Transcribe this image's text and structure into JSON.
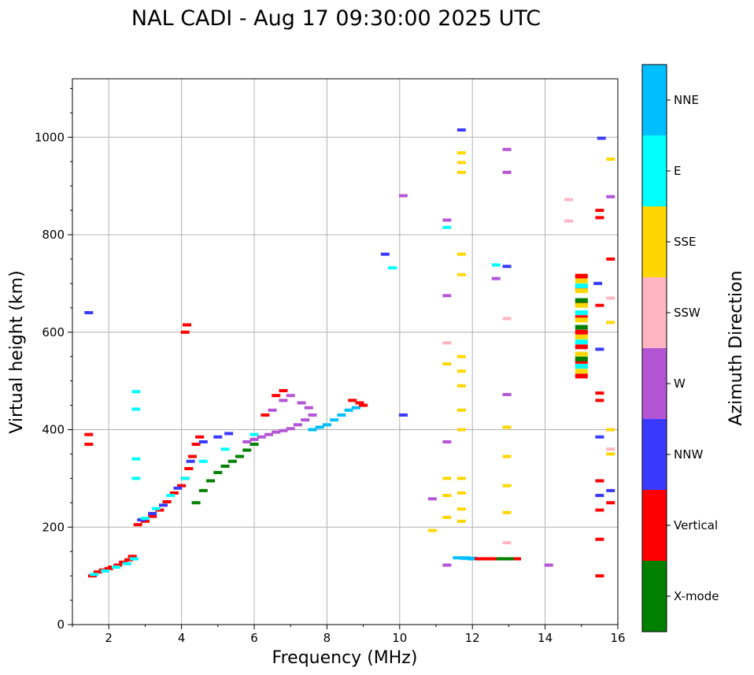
{
  "chart_data": {
    "type": "scatter",
    "title": "NAL CADI - Aug 17 09:30:00 2025 UTC",
    "xlabel": "Frequency (MHz)",
    "ylabel": "Virtual height (km)",
    "xlim": [
      1,
      16
    ],
    "ylim": [
      0,
      1120
    ],
    "xticks": [
      2,
      4,
      6,
      8,
      10,
      12,
      14,
      16
    ],
    "yticks": [
      0,
      200,
      400,
      600,
      800,
      1000
    ],
    "grid": true,
    "legend": {
      "title": "Azimuth Direction",
      "placement": "right colorbar",
      "entries": [
        {
          "name": "X-mode",
          "color": "#008000"
        },
        {
          "name": "Vertical",
          "color": "#ff0000"
        },
        {
          "name": "NNW",
          "color": "#3a3aff"
        },
        {
          "name": "W",
          "color": "#b455d5"
        },
        {
          "name": "SSW",
          "color": "#ffb6c1"
        },
        {
          "name": "SSE",
          "color": "#ffd700"
        },
        {
          "name": "E",
          "color": "#00ffff"
        },
        {
          "name": "NNE",
          "color": "#00bfff"
        }
      ]
    },
    "echo_traces": [
      {
        "name": "low E-region trace",
        "category": "Vertical",
        "points": [
          [
            1.55,
            100
          ],
          [
            1.7,
            108
          ],
          [
            1.85,
            112
          ],
          [
            2.0,
            115
          ],
          [
            2.1,
            118
          ],
          [
            2.25,
            122
          ],
          [
            2.4,
            128
          ],
          [
            2.55,
            133
          ],
          [
            2.65,
            140
          ]
        ]
      },
      {
        "name": "low E-region trace",
        "category": "E",
        "points": [
          [
            1.6,
            103
          ],
          [
            1.9,
            110
          ],
          [
            2.2,
            118
          ],
          [
            2.5,
            125
          ],
          [
            2.7,
            135
          ]
        ]
      },
      {
        "name": "F-region ordinary trace",
        "category": "Vertical",
        "points": [
          [
            2.8,
            205
          ],
          [
            3.0,
            212
          ],
          [
            3.2,
            222
          ],
          [
            3.4,
            235
          ],
          [
            3.6,
            252
          ],
          [
            3.8,
            270
          ],
          [
            4.0,
            285
          ],
          [
            4.1,
            300
          ],
          [
            4.2,
            320
          ],
          [
            4.3,
            345
          ],
          [
            4.4,
            370
          ],
          [
            4.5,
            385
          ]
        ]
      },
      {
        "name": "F-region ordinary trace",
        "category": "NNW",
        "points": [
          [
            2.9,
            215
          ],
          [
            3.2,
            228
          ],
          [
            3.5,
            245
          ],
          [
            3.9,
            280
          ],
          [
            4.25,
            335
          ],
          [
            4.6,
            375
          ],
          [
            5.0,
            385
          ],
          [
            5.3,
            392
          ]
        ]
      },
      {
        "name": "F-region ordinary trace",
        "category": "E",
        "points": [
          [
            3.0,
            218
          ],
          [
            3.3,
            238
          ],
          [
            3.7,
            265
          ],
          [
            4.1,
            300
          ],
          [
            4.6,
            335
          ],
          [
            5.2,
            360
          ],
          [
            6.0,
            390
          ]
        ]
      },
      {
        "name": "X-mode trace",
        "category": "X-mode",
        "points": [
          [
            4.4,
            250
          ],
          [
            4.6,
            275
          ],
          [
            4.8,
            295
          ],
          [
            5.0,
            312
          ],
          [
            5.2,
            325
          ],
          [
            5.4,
            335
          ],
          [
            5.6,
            345
          ],
          [
            5.8,
            358
          ],
          [
            6.0,
            370
          ]
        ]
      },
      {
        "name": "F-region spread",
        "category": "W",
        "points": [
          [
            5.8,
            375
          ],
          [
            6.0,
            380
          ],
          [
            6.2,
            385
          ],
          [
            6.4,
            390
          ],
          [
            6.6,
            395
          ],
          [
            6.8,
            398
          ],
          [
            7.0,
            402
          ],
          [
            7.2,
            410
          ],
          [
            7.4,
            420
          ],
          [
            7.6,
            430
          ],
          [
            6.5,
            440
          ],
          [
            6.8,
            460
          ],
          [
            7.0,
            470
          ],
          [
            7.3,
            455
          ],
          [
            7.5,
            445
          ]
        ]
      },
      {
        "name": "F-region spread",
        "category": "NNE",
        "points": [
          [
            7.6,
            400
          ],
          [
            7.8,
            405
          ],
          [
            8.0,
            410
          ],
          [
            8.2,
            420
          ],
          [
            8.4,
            430
          ],
          [
            8.6,
            440
          ],
          [
            8.8,
            445
          ],
          [
            9.0,
            450
          ]
        ]
      },
      {
        "name": "F-region spread",
        "category": "Vertical",
        "points": [
          [
            6.3,
            430
          ],
          [
            6.6,
            470
          ],
          [
            6.8,
            480
          ],
          [
            8.7,
            460
          ],
          [
            8.9,
            455
          ],
          [
            9.0,
            450
          ]
        ]
      },
      {
        "name": "high-frequency E-layer echo",
        "category": "NNE",
        "points": [
          [
            11.7,
            137
          ],
          [
            11.9,
            136
          ],
          [
            12.1,
            135
          ]
        ]
      },
      {
        "name": "high-frequency E-layer echo",
        "category": "Vertical",
        "points": [
          [
            12.3,
            135
          ],
          [
            12.5,
            135
          ],
          [
            12.8,
            135
          ],
          [
            13.1,
            135
          ]
        ]
      },
      {
        "name": "high-frequency E-layer echo",
        "category": "X-mode",
        "points": [
          [
            12.9,
            135
          ]
        ]
      },
      {
        "name": "15 MHz column",
        "category": "Vertical",
        "points": [
          [
            15.0,
            510
          ],
          [
            15.0,
            540
          ],
          [
            15.0,
            570
          ],
          [
            15.0,
            600
          ],
          [
            15.0,
            630
          ],
          [
            15.0,
            660
          ],
          [
            15.0,
            690
          ],
          [
            15.0,
            715
          ]
        ]
      },
      {
        "name": "15 MHz column",
        "category": "SSE",
        "points": [
          [
            15.0,
            520
          ],
          [
            15.0,
            555
          ],
          [
            15.0,
            590
          ],
          [
            15.0,
            625
          ],
          [
            15.0,
            655
          ],
          [
            15.0,
            685
          ],
          [
            15.0,
            705
          ]
        ]
      },
      {
        "name": "15 MHz column",
        "category": "X-mode",
        "points": [
          [
            15.0,
            545
          ],
          [
            15.0,
            610
          ],
          [
            15.0,
            665
          ]
        ]
      },
      {
        "name": "15 MHz column",
        "category": "E",
        "points": [
          [
            15.0,
            530
          ],
          [
            15.0,
            580
          ],
          [
            15.0,
            640
          ],
          [
            15.0,
            695
          ]
        ]
      },
      {
        "name": "scattered echoes",
        "category": "Vertical",
        "points": [
          [
            1.45,
            390
          ],
          [
            1.45,
            370
          ],
          [
            4.1,
            600
          ],
          [
            4.15,
            615
          ],
          [
            15.5,
            850
          ],
          [
            15.5,
            835
          ],
          [
            15.5,
            655
          ],
          [
            15.5,
            475
          ],
          [
            15.5,
            460
          ],
          [
            15.5,
            295
          ],
          [
            15.5,
            235
          ],
          [
            15.5,
            175
          ],
          [
            15.5,
            100
          ],
          [
            15.8,
            750
          ],
          [
            15.8,
            250
          ]
        ]
      },
      {
        "name": "scattered echoes",
        "category": "NNW",
        "points": [
          [
            1.45,
            640
          ],
          [
            9.6,
            760
          ],
          [
            11.7,
            1015
          ],
          [
            12.95,
            735
          ],
          [
            15.45,
            700
          ],
          [
            15.5,
            565
          ],
          [
            15.5,
            385
          ],
          [
            15.5,
            265
          ],
          [
            15.55,
            998
          ],
          [
            15.8,
            275
          ],
          [
            10.1,
            430
          ]
        ]
      },
      {
        "name": "scattered echoes",
        "category": "W",
        "points": [
          [
            10.1,
            880
          ],
          [
            11.3,
            830
          ],
          [
            11.3,
            675
          ],
          [
            11.3,
            375
          ],
          [
            12.65,
            710
          ],
          [
            12.95,
            928
          ],
          [
            12.95,
            975
          ],
          [
            12.95,
            472
          ],
          [
            14.1,
            122
          ],
          [
            15.8,
            878
          ],
          [
            10.9,
            258
          ],
          [
            11.3,
            122
          ]
        ]
      },
      {
        "name": "scattered echoes",
        "category": "SSE",
        "points": [
          [
            11.7,
            968
          ],
          [
            11.7,
            948
          ],
          [
            11.7,
            928
          ],
          [
            11.7,
            760
          ],
          [
            11.7,
            718
          ],
          [
            11.7,
            550
          ],
          [
            11.7,
            520
          ],
          [
            11.7,
            490
          ],
          [
            11.7,
            440
          ],
          [
            11.7,
            400
          ],
          [
            11.7,
            300
          ],
          [
            11.7,
            270
          ],
          [
            11.7,
            237
          ],
          [
            11.7,
            212
          ],
          [
            12.95,
            405
          ],
          [
            12.95,
            345
          ],
          [
            12.95,
            285
          ],
          [
            12.95,
            230
          ],
          [
            15.8,
            955
          ],
          [
            15.8,
            620
          ],
          [
            15.8,
            400
          ],
          [
            15.8,
            350
          ],
          [
            11.3,
            535
          ],
          [
            11.3,
            300
          ],
          [
            11.3,
            265
          ],
          [
            10.9,
            193
          ],
          [
            11.3,
            220
          ]
        ]
      },
      {
        "name": "scattered echoes",
        "category": "SSW",
        "points": [
          [
            14.65,
            872
          ],
          [
            14.65,
            828
          ],
          [
            12.95,
            628
          ],
          [
            12.95,
            168
          ],
          [
            15.8,
            670
          ],
          [
            15.8,
            360
          ],
          [
            11.3,
            578
          ]
        ]
      },
      {
        "name": "scattered echoes",
        "category": "E",
        "points": [
          [
            12.65,
            738
          ],
          [
            11.3,
            815
          ],
          [
            9.8,
            732
          ],
          [
            2.75,
            478
          ],
          [
            2.75,
            442
          ],
          [
            2.75,
            340
          ],
          [
            2.75,
            300
          ]
        ]
      }
    ]
  }
}
